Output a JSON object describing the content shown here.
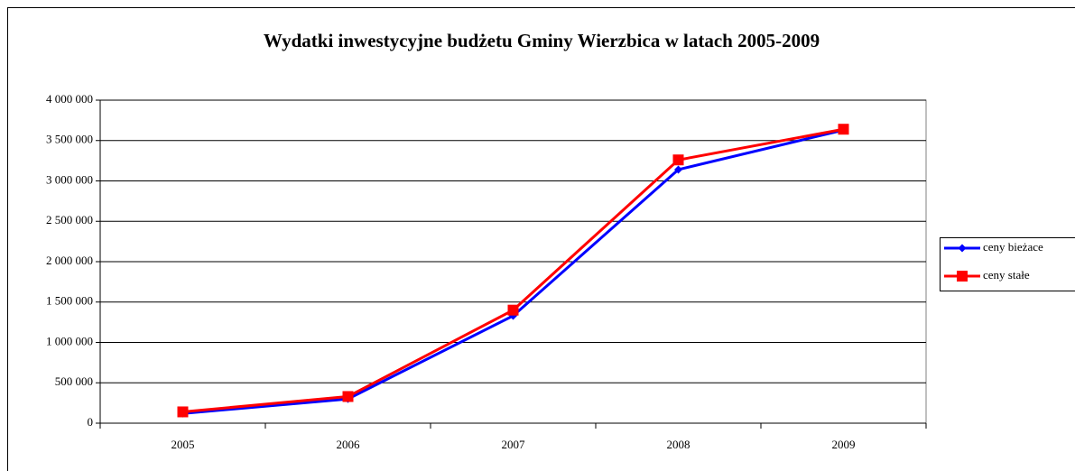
{
  "chart_data": {
    "type": "line",
    "title": "Wydatki inwestycyjne budżetu Gminy Wierzbica w latach 2005-2009",
    "categories": [
      "2005",
      "2006",
      "2007",
      "2008",
      "2009"
    ],
    "series": [
      {
        "name": "ceny bieżace",
        "color": "#0000ff",
        "marker": "diamond",
        "values": [
          120000,
          300000,
          1330000,
          3140000,
          3630000
        ]
      },
      {
        "name": "ceny stałe",
        "color": "#ff0000",
        "marker": "square",
        "values": [
          140000,
          330000,
          1400000,
          3260000,
          3640000
        ]
      }
    ],
    "ylim": [
      0,
      4000000
    ],
    "yticks": [
      0,
      {
        "value": 500000,
        "label": "500 000"
      },
      {
        "value": 1000000,
        "label": "1 000 000"
      },
      {
        "value": 1500000,
        "label": "1 500 000"
      },
      {
        "value": 2000000,
        "label": "2 000 000"
      },
      {
        "value": 2500000,
        "label": "2 500 000"
      },
      {
        "value": 3000000,
        "label": "3 000 000"
      },
      {
        "value": 3500000,
        "label": "3 500 000"
      },
      {
        "value": 4000000,
        "label": "4 000 000"
      }
    ],
    "grid": true,
    "legend": "right"
  }
}
